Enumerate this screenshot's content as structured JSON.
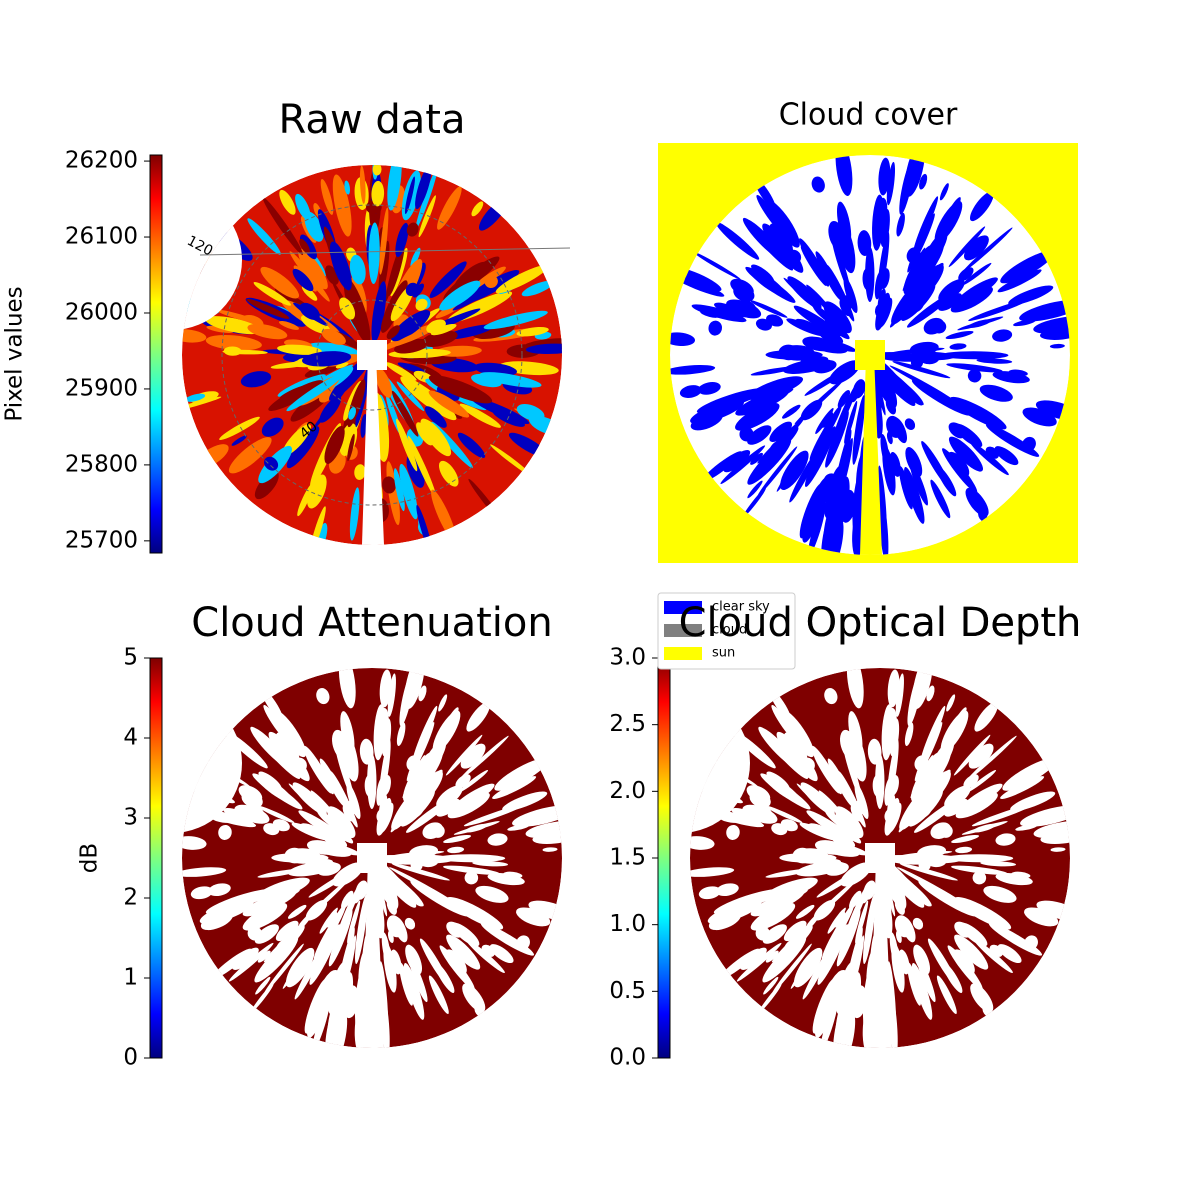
{
  "chart_data": [
    {
      "type": "image",
      "title": "Raw data",
      "annotations": [
        "120",
        "40"
      ],
      "colorbar": {
        "label": "Pixel values",
        "lim": [
          25684,
          26208
        ],
        "ticks": [
          25700,
          25800,
          25900,
          26000,
          26100,
          26200
        ]
      }
    },
    {
      "type": "image",
      "title": "Cloud cover",
      "legend": [
        {
          "name": "clear sky",
          "color": "#0000ff"
        },
        {
          "name": "cloud",
          "color": "#808080"
        },
        {
          "name": "sun",
          "color": "#ffff00"
        }
      ]
    },
    {
      "type": "image",
      "title": "Cloud Attenuation",
      "colorbar": {
        "label": "dB",
        "lim": [
          0,
          5
        ],
        "ticks": [
          0,
          1,
          2,
          3,
          4,
          5
        ]
      }
    },
    {
      "type": "image",
      "title": "Cloud Optical Depth",
      "colorbar": {
        "lim": [
          0,
          3
        ],
        "ticks": [
          {
            "value": 0,
            "label": "0.0"
          },
          {
            "value": 0.5,
            "label": "0.5"
          },
          {
            "value": 1,
            "label": "1.0"
          },
          {
            "value": 1.5,
            "label": "1.5"
          },
          {
            "value": 2,
            "label": "2.0"
          },
          {
            "value": 2.5,
            "label": "2.5"
          },
          {
            "value": 3,
            "label": "3.0"
          }
        ]
      }
    }
  ]
}
